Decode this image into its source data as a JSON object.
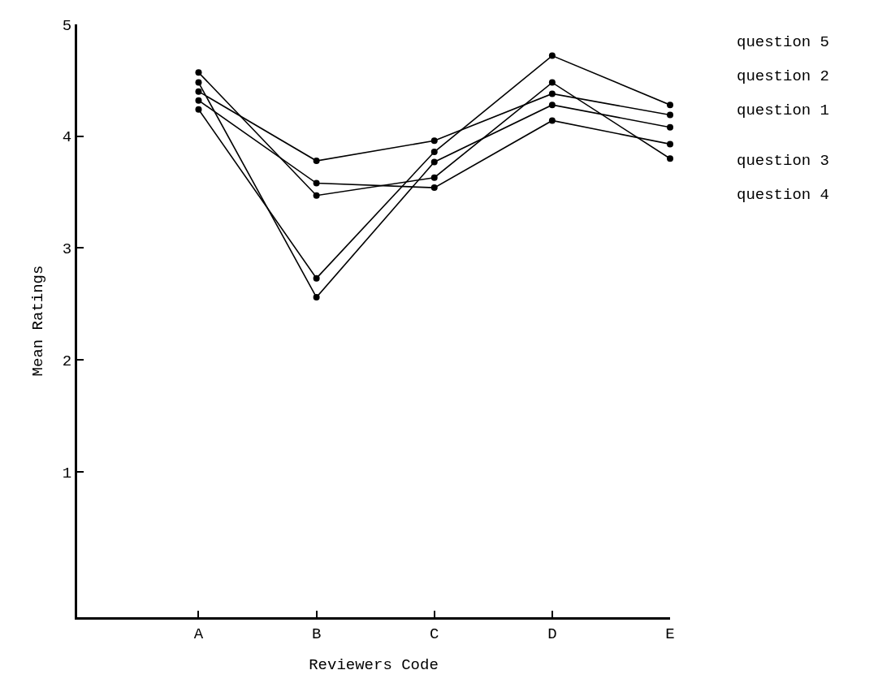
{
  "chart_data": {
    "type": "line",
    "xlabel": "Reviewers Code",
    "ylabel": "Mean Ratings",
    "categories": [
      "A",
      "B",
      "C",
      "D",
      "E"
    ],
    "series": [
      {
        "name": "question 5",
        "color": "#000000",
        "values": [
          4.24,
          2.73,
          3.86,
          4.72,
          4.28
        ]
      },
      {
        "name": "question 2",
        "color": "#000000",
        "values": [
          4.4,
          3.78,
          3.96,
          4.38,
          4.19
        ]
      },
      {
        "name": "question 1",
        "color": "#000000",
        "values": [
          4.48,
          2.56,
          3.77,
          4.28,
          4.08
        ]
      },
      {
        "name": "question 3",
        "color": "#000000",
        "values": [
          4.32,
          3.58,
          3.54,
          4.14,
          3.93
        ]
      },
      {
        "name": "question 4",
        "color": "#000000",
        "values": [
          4.57,
          3.47,
          3.63,
          4.48,
          3.8
        ]
      }
    ],
    "ylim": [
      -0.3,
      5
    ],
    "yticks": [
      1,
      2,
      3,
      4,
      5
    ],
    "grid": false,
    "legend": "right",
    "marker": "circle",
    "line_style": "solid"
  }
}
